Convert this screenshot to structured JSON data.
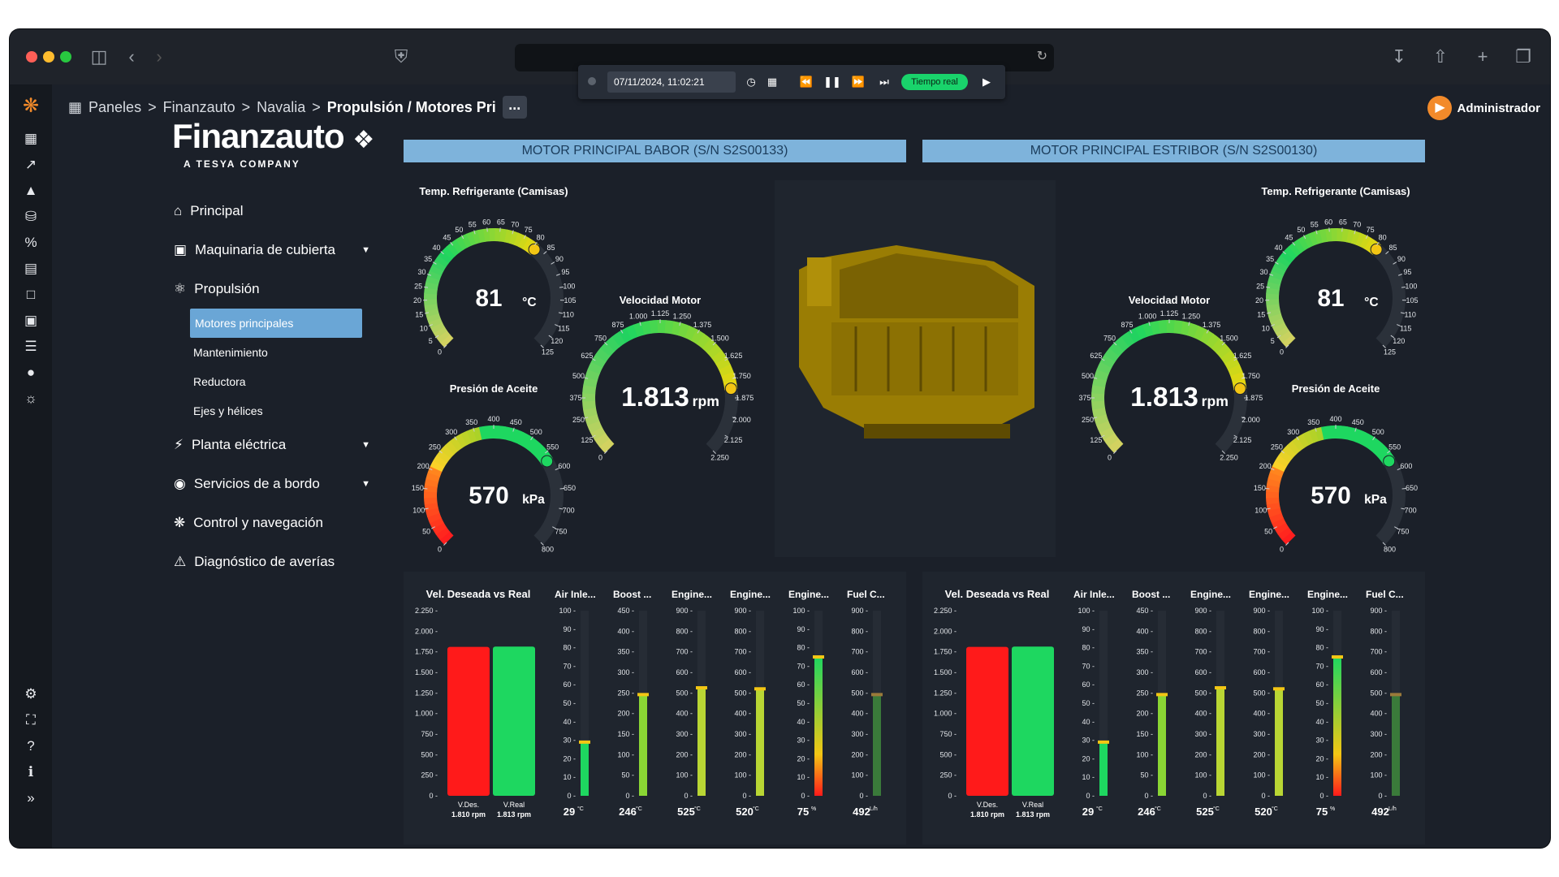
{
  "breadcrumb": {
    "items": [
      "Paneles",
      "Finanzauto",
      "Navalia"
    ],
    "current": "Propulsión / Motores Pri",
    "more_label": "..."
  },
  "time_controls": {
    "datetime": "07/11/2024, 11:02:21",
    "realtime_label": "Tiempo real"
  },
  "user": {
    "name": "Administrador"
  },
  "brand": {
    "name": "Finanzauto",
    "tagline": "A TESYA COMPANY"
  },
  "nav": {
    "principal": "Principal",
    "maquinaria": "Maquinaria de cubierta",
    "propulsion": "Propulsión",
    "propulsion_sub": [
      "Motores principales",
      "Mantenimiento",
      "Reductora",
      "Ejes y hélices"
    ],
    "planta": "Planta eléctrica",
    "servicios": "Servicios de a bordo",
    "control": "Control y navegación",
    "diagnostico": "Diagnóstico de averías"
  },
  "engines": [
    {
      "title": "MOTOR PRINCIPAL BABOR (S/N S2S00133)",
      "temp": {
        "label": "Temp. Refrigerante (Camisas)",
        "value": "81",
        "unit": "°C",
        "min": 0,
        "max": 125
      },
      "speed": {
        "label": "Velocidad Motor",
        "value": "1.813",
        "unit": "rpm",
        "min": 0,
        "max": 2250
      },
      "oil": {
        "label": "Presión de Aceite",
        "value": "570",
        "unit": "kPa",
        "min": 0,
        "max": 800
      },
      "bars_title": "Vel. Deseada vs Real",
      "vdes": {
        "label": "V.Des.",
        "value": "1.810 rpm"
      },
      "vreal": {
        "label": "V.Real",
        "value": "1.813 rpm"
      },
      "meters": [
        {
          "title": "Air Inle...",
          "value": "29",
          "unit": "°C"
        },
        {
          "title": "Boost ...",
          "value": "246",
          "unit": "°C"
        },
        {
          "title": "Engine...",
          "value": "525",
          "unit": "°C"
        },
        {
          "title": "Engine...",
          "value": "520",
          "unit": "°C"
        },
        {
          "title": "Engine...",
          "value": "75",
          "unit": "%"
        },
        {
          "title": "Fuel C...",
          "value": "492",
          "unit": "L/h"
        }
      ]
    },
    {
      "title": "MOTOR PRINCIPAL ESTRIBOR (S/N S2S00130)",
      "temp": {
        "label": "Temp. Refrigerante (Camisas)",
        "value": "81",
        "unit": "°C",
        "min": 0,
        "max": 125
      },
      "speed": {
        "label": "Velocidad Motor",
        "value": "1.813",
        "unit": "rpm",
        "min": 0,
        "max": 2250
      },
      "oil": {
        "label": "Presión de Aceite",
        "value": "570",
        "unit": "kPa",
        "min": 0,
        "max": 800
      },
      "bars_title": "Vel. Deseada vs Real",
      "vdes": {
        "label": "V.Des.",
        "value": "1.810 rpm"
      },
      "vreal": {
        "label": "V.Real",
        "value": "1.813 rpm"
      },
      "meters": [
        {
          "title": "Air Inle...",
          "value": "29",
          "unit": "°C"
        },
        {
          "title": "Boost ...",
          "value": "246",
          "unit": "°C"
        },
        {
          "title": "Engine...",
          "value": "525",
          "unit": "°C"
        },
        {
          "title": "Engine...",
          "value": "520",
          "unit": "°C"
        },
        {
          "title": "Engine...",
          "value": "75",
          "unit": "%"
        },
        {
          "title": "Fuel C...",
          "value": "492",
          "unit": "L/h"
        }
      ]
    }
  ],
  "colors": {
    "accent": "#6aa6d6",
    "green": "#1ed760",
    "red": "#ff1a1a",
    "yellow": "#f3c614",
    "panel": "#1f252e"
  },
  "gauge_ticks": {
    "temp": [
      "0",
      "5",
      "10",
      "15",
      "20",
      "25",
      "30",
      "35",
      "40",
      "45",
      "50",
      "55",
      "60",
      "65",
      "70",
      "75",
      "80",
      "85",
      "90",
      "95",
      "100",
      "105",
      "110",
      "115",
      "120",
      "125"
    ],
    "speed": [
      "0",
      "125",
      "250",
      "375",
      "500",
      "625",
      "750",
      "875",
      "1.000",
      "1.125",
      "1.250",
      "1.375",
      "1.500",
      "1.625",
      "1.750",
      "1.875",
      "2.000",
      "2.125",
      "2.250"
    ],
    "oil": [
      "0",
      "50",
      "100",
      "150",
      "200",
      "250",
      "300",
      "350",
      "400",
      "450",
      "500",
      "550",
      "600",
      "650",
      "700",
      "750",
      "800"
    ]
  },
  "bar_chart_ticks": [
    "2.250",
    "2.000",
    "1.750",
    "1.500",
    "1.250",
    "1.000",
    "750",
    "500",
    "250",
    "0"
  ],
  "meter_scales": [
    [
      "100",
      "90",
      "80",
      "70",
      "60",
      "50",
      "40",
      "30",
      "20",
      "10",
      "0"
    ],
    [
      "450",
      "400",
      "350",
      "300",
      "250",
      "200",
      "150",
      "100",
      "50",
      "0"
    ],
    [
      "900",
      "800",
      "700",
      "600",
      "500",
      "400",
      "300",
      "200",
      "100",
      "0"
    ],
    [
      "900",
      "800",
      "700",
      "600",
      "500",
      "400",
      "300",
      "200",
      "100",
      "0"
    ],
    [
      "100",
      "90",
      "80",
      "70",
      "60",
      "50",
      "40",
      "30",
      "20",
      "10",
      "0"
    ],
    [
      "900",
      "800",
      "700",
      "600",
      "500",
      "400",
      "300",
      "200",
      "100",
      "0"
    ]
  ],
  "chart_data": [
    {
      "type": "bar",
      "title": "Vel. Deseada vs Real",
      "categories": [
        "V.Des.",
        "V.Real"
      ],
      "values": [
        1810,
        1813
      ],
      "ylim": [
        0,
        2250
      ]
    },
    {
      "type": "bar",
      "title": "Vel. Deseada vs Real",
      "categories": [
        "V.Des.",
        "V.Real"
      ],
      "values": [
        1810,
        1813
      ],
      "ylim": [
        0,
        2250
      ]
    }
  ],
  "meter_levels": [
    29,
    246,
    525,
    520,
    75,
    492
  ],
  "meter_max": [
    100,
    450,
    900,
    900,
    100,
    900
  ]
}
